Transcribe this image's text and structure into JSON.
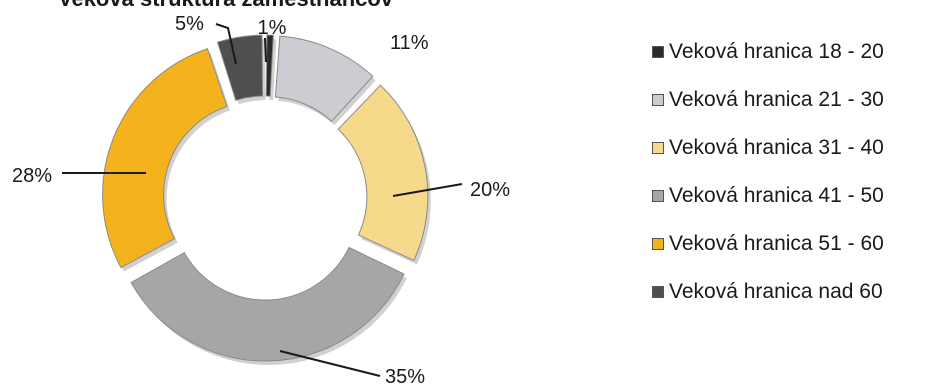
{
  "chart_data": {
    "type": "pie",
    "subtype": "exploded-donut",
    "title": "Veková štruktúra zamestnancov",
    "categories": [
      "Veková hranica 18 - 20",
      "Veková hranica 21 - 30",
      "Veková hranica 31 - 40",
      "Veková hranica 41 - 50",
      "Veková hranica 51 - 60",
      "Veková hranica nad 60"
    ],
    "values": [
      1,
      11,
      20,
      35,
      28,
      5
    ],
    "value_labels": [
      "1%",
      "11%",
      "20%",
      "35%",
      "28%",
      "5%"
    ],
    "colors": [
      "#2b2b2b",
      "#cfcbd3",
      "#f7d98c",
      "#a8a5a8",
      "#f4b21d",
      "#4f4e50"
    ],
    "legend_position": "right"
  }
}
